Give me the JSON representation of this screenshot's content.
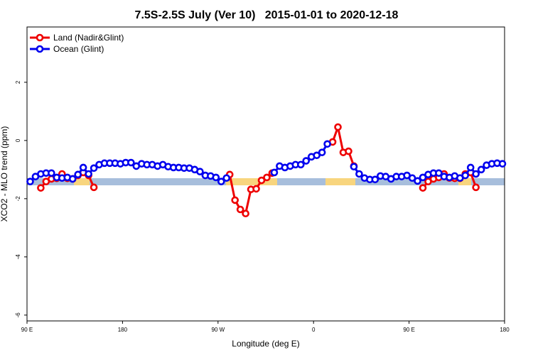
{
  "chart_data": {
    "type": "line",
    "title": "7.5S-2.5S July (Ver 10)   2015-01-01 to 2020-12-18",
    "xlabel": "Longitude (deg E)",
    "ylabel": "XCO2 - MLO trend (ppm)",
    "xlim": [
      90,
      540
    ],
    "xticks": [
      {
        "value": 90,
        "label": "90 E"
      },
      {
        "value": 180,
        "label": "180"
      },
      {
        "value": 270,
        "label": "90 W"
      },
      {
        "value": 360,
        "label": "0"
      },
      {
        "value": 450,
        "label": "90 E"
      },
      {
        "value": 540,
        "label": "180"
      }
    ],
    "ylim": [
      -6.2,
      3.9
    ],
    "yticks": [
      -6,
      -4,
      -2,
      0,
      2
    ],
    "legend": "top-left",
    "series": [
      {
        "name": "Land (Nadir&Glint)",
        "color": "#ee0000",
        "x": [
          103,
          108,
          113,
          118,
          123,
          128,
          133,
          138,
          143,
          148,
          153,
          null,
          281,
          286,
          291,
          296,
          301,
          306,
          311,
          316,
          321,
          null,
          378,
          383,
          388,
          393,
          398,
          null,
          463,
          468,
          473,
          478,
          483,
          488,
          493,
          498,
          503,
          508,
          513
        ],
        "values": [
          -1.63,
          -1.41,
          -1.32,
          -1.3,
          -1.15,
          -1.3,
          -1.32,
          -1.2,
          -1.1,
          -1.2,
          -1.61,
          null,
          -1.17,
          -2.05,
          -2.37,
          -2.51,
          -1.68,
          -1.66,
          -1.37,
          -1.27,
          -1.12,
          null,
          -0.05,
          0.46,
          -0.41,
          -0.37,
          -0.88,
          null,
          -1.63,
          -1.41,
          -1.32,
          -1.27,
          -1.15,
          -1.29,
          -1.3,
          -1.3,
          -1.15,
          -1.1,
          -1.61
        ]
      },
      {
        "name": "Ocean (Glint)",
        "color": "#0000ee",
        "x": [
          93,
          98,
          103,
          108,
          113,
          118,
          123,
          128,
          133,
          138,
          143,
          148,
          153,
          158,
          163,
          168,
          173,
          178,
          183,
          188,
          193,
          198,
          203,
          208,
          213,
          218,
          223,
          228,
          233,
          238,
          243,
          248,
          253,
          258,
          263,
          268,
          273,
          278,
          null,
          323,
          328,
          333,
          338,
          343,
          348,
          353,
          358,
          363,
          368,
          373,
          null,
          398,
          403,
          408,
          413,
          418,
          423,
          428,
          433,
          438,
          443,
          448,
          453,
          458,
          463,
          468,
          473,
          478,
          483,
          488,
          493,
          498,
          503,
          508,
          513,
          518,
          523,
          528,
          533,
          538
        ],
        "values": [
          -1.41,
          -1.24,
          -1.15,
          -1.12,
          -1.12,
          -1.27,
          -1.29,
          -1.27,
          -1.32,
          -1.17,
          -0.93,
          -1.15,
          -0.95,
          -0.83,
          -0.78,
          -0.78,
          -0.78,
          -0.8,
          -0.76,
          -0.76,
          -0.88,
          -0.8,
          -0.83,
          -0.83,
          -0.88,
          -0.83,
          -0.9,
          -0.93,
          -0.93,
          -0.95,
          -0.95,
          -1.0,
          -1.07,
          -1.2,
          -1.22,
          -1.27,
          -1.41,
          -1.29,
          null,
          -1.1,
          -0.88,
          -0.93,
          -0.88,
          -0.83,
          -0.83,
          -0.7,
          -0.56,
          -0.51,
          -0.41,
          -0.12,
          null,
          -0.9,
          -1.15,
          -1.29,
          -1.34,
          -1.34,
          -1.22,
          -1.24,
          -1.32,
          -1.24,
          -1.24,
          -1.2,
          -1.29,
          -1.39,
          -1.27,
          -1.17,
          -1.12,
          -1.12,
          -1.24,
          -1.27,
          -1.22,
          -1.29,
          -1.2,
          -0.93,
          -1.15,
          -1.0,
          -0.85,
          -0.8,
          -0.78,
          -0.8
        ]
      }
    ]
  }
}
